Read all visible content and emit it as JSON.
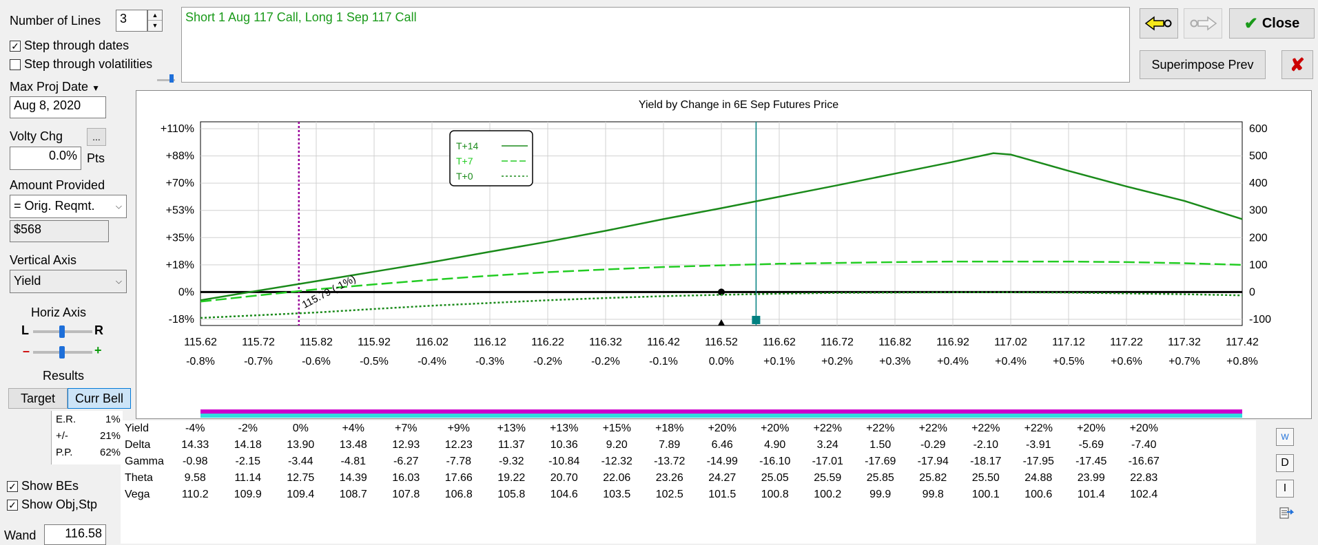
{
  "controls": {
    "num_lines_label": "Number of Lines",
    "num_lines_value": "3",
    "step_dates_label": "Step through dates",
    "step_dates_checked": true,
    "step_vols_label": "Step through volatilities",
    "step_vols_checked": false,
    "max_proj_label": "Max Proj Date",
    "max_proj_value": "Aug 8, 2020",
    "volty_label": "Volty Chg",
    "volty_btn": "...",
    "volty_value": "0.0%",
    "volty_unit": "Pts",
    "amount_label": "Amount Provided",
    "amount_select": "= Orig. Reqmt.",
    "amount_value": "$568",
    "vaxis_label": "Vertical Axis",
    "vaxis_select": "Yield",
    "haxis_label": "Horiz Axis",
    "haxis_l": "L",
    "haxis_r": "R",
    "haxis_minus": "–",
    "haxis_plus": "+",
    "results_label": "Results",
    "tab_target": "Target",
    "tab_currbell": "Curr Bell",
    "er_label": "E.R.",
    "er_value": "1%",
    "pm_label": "+/-",
    "pm_value": "21%",
    "pp_label": "P.P.",
    "pp_value": "62%",
    "show_bes_label": "Show BEs",
    "show_bes_checked": true,
    "show_obj_label": "Show Obj,Stp",
    "show_obj_checked": true,
    "wand_label": "Wand",
    "wand_value": "116.58"
  },
  "description": "Short 1 Aug 117 Call, Long 1 Sep 117 Call",
  "buttons": {
    "close": "Close",
    "superimpose": "Superimpose Prev"
  },
  "chart_data": {
    "type": "line",
    "title": "Yield by Change in 6E Sep Futures Price",
    "x": [
      115.62,
      115.72,
      115.82,
      115.92,
      116.02,
      116.12,
      116.22,
      116.32,
      116.42,
      116.52,
      116.62,
      116.72,
      116.82,
      116.92,
      117.02,
      117.12,
      117.22,
      117.32,
      117.42
    ],
    "x_tick_labels": [
      "115.62",
      "115.72",
      "115.82",
      "115.92",
      "116.02",
      "116.12",
      "116.22",
      "116.32",
      "116.42",
      "116.52",
      "116.62",
      "116.72",
      "116.82",
      "116.92",
      "117.02",
      "117.12",
      "117.22",
      "117.32",
      "117.42"
    ],
    "x_pct_labels": [
      "-0.8%",
      "-0.7%",
      "-0.6%",
      "-0.5%",
      "-0.4%",
      "-0.3%",
      "-0.2%",
      "-0.2%",
      "-0.1%",
      "0.0%",
      "+0.1%",
      "+0.2%",
      "+0.3%",
      "+0.4%",
      "+0.4%",
      "+0.5%",
      "+0.6%",
      "+0.7%",
      "+0.8%"
    ],
    "y_left_labels": [
      "+110%",
      "+88%",
      "+70%",
      "+53%",
      "+35%",
      "+18%",
      "0%",
      "-18%"
    ],
    "y_right_labels": [
      "600",
      "500",
      "400",
      "300",
      "200",
      "100",
      "0",
      "-100"
    ],
    "y2lim": [
      -100,
      600
    ],
    "series": [
      {
        "name": "T+14",
        "style": "solid",
        "color": "#1a8a1a",
        "x": [
          115.62,
          115.72,
          115.82,
          115.92,
          116.02,
          116.12,
          116.22,
          116.32,
          116.42,
          116.52,
          116.62,
          116.72,
          116.82,
          116.92,
          116.99,
          117.02,
          117.12,
          117.22,
          117.32,
          117.42
        ],
        "y": [
          -30,
          5,
          40,
          75,
          110,
          148,
          185,
          225,
          268,
          308,
          350,
          392,
          435,
          478,
          510,
          505,
          445,
          388,
          335,
          268
        ]
      },
      {
        "name": "T+7",
        "style": "dashed",
        "color": "#22cc22",
        "x": [
          115.62,
          115.72,
          115.82,
          115.92,
          116.02,
          116.12,
          116.22,
          116.32,
          116.42,
          116.52,
          116.62,
          116.72,
          116.82,
          116.92,
          117.02,
          117.12,
          117.22,
          117.32,
          117.42
        ],
        "y": [
          -35,
          -12,
          10,
          28,
          45,
          60,
          73,
          83,
          92,
          98,
          104,
          107,
          110,
          112,
          112,
          112,
          110,
          106,
          100
        ]
      },
      {
        "name": "T+0",
        "style": "dotted",
        "color": "#1a8a1a",
        "x": [
          115.62,
          115.72,
          115.82,
          115.92,
          116.02,
          116.12,
          116.22,
          116.32,
          116.42,
          116.52,
          116.62,
          116.72,
          116.82,
          116.92,
          117.02,
          117.12,
          117.22,
          117.32,
          117.42
        ],
        "y": [
          -95,
          -85,
          -75,
          -62,
          -50,
          -40,
          -30,
          -22,
          -15,
          -10,
          -6,
          -3,
          -2,
          -1,
          -1,
          -2,
          -5,
          -8,
          -12
        ]
      }
    ],
    "annotation": "115.79 (-1%)",
    "be_line_x": 115.79,
    "current_price_x": 116.58,
    "legend_placement": "top-left",
    "grid": true
  },
  "greeks": {
    "rows": [
      {
        "label": "Yield",
        "values": [
          "-4%",
          "-2%",
          "0%",
          "+4%",
          "+7%",
          "+9%",
          "+13%",
          "+13%",
          "+15%",
          "+18%",
          "+20%",
          "+20%",
          "+22%",
          "+22%",
          "+22%",
          "+22%",
          "+22%",
          "+20%",
          "+20%"
        ]
      },
      {
        "label": "Delta",
        "values": [
          "14.33",
          "14.18",
          "13.90",
          "13.48",
          "12.93",
          "12.23",
          "11.37",
          "10.36",
          "9.20",
          "7.89",
          "6.46",
          "4.90",
          "3.24",
          "1.50",
          "-0.29",
          "-2.10",
          "-3.91",
          "-5.69",
          "-7.40"
        ]
      },
      {
        "label": "Gamma",
        "values": [
          "-0.98",
          "-2.15",
          "-3.44",
          "-4.81",
          "-6.27",
          "-7.78",
          "-9.32",
          "-10.84",
          "-12.32",
          "-13.72",
          "-14.99",
          "-16.10",
          "-17.01",
          "-17.69",
          "-17.94",
          "-18.17",
          "-17.95",
          "-17.45",
          "-16.67"
        ]
      },
      {
        "label": "Theta",
        "values": [
          "9.58",
          "11.14",
          "12.75",
          "14.39",
          "16.03",
          "17.66",
          "19.22",
          "20.70",
          "22.06",
          "23.26",
          "24.27",
          "25.05",
          "25.59",
          "25.85",
          "25.82",
          "25.50",
          "24.88",
          "23.99",
          "22.83"
        ]
      },
      {
        "label": "Vega",
        "values": [
          "110.2",
          "109.9",
          "109.4",
          "108.7",
          "107.8",
          "106.8",
          "105.8",
          "104.6",
          "103.5",
          "102.5",
          "101.5",
          "100.8",
          "100.2",
          "99.9",
          "99.8",
          "100.1",
          "100.6",
          "101.4",
          "102.4"
        ]
      }
    ]
  },
  "side_icons": {
    "w_label": "W",
    "d_label": "D",
    "i_label": "I"
  },
  "colors": {
    "green_dark": "#1a8a1a",
    "green_light": "#22cc22",
    "be_line": "#990099",
    "price_line": "#008080",
    "bar_magenta": "#cc00cc",
    "bar_cyan": "#33dddd"
  }
}
